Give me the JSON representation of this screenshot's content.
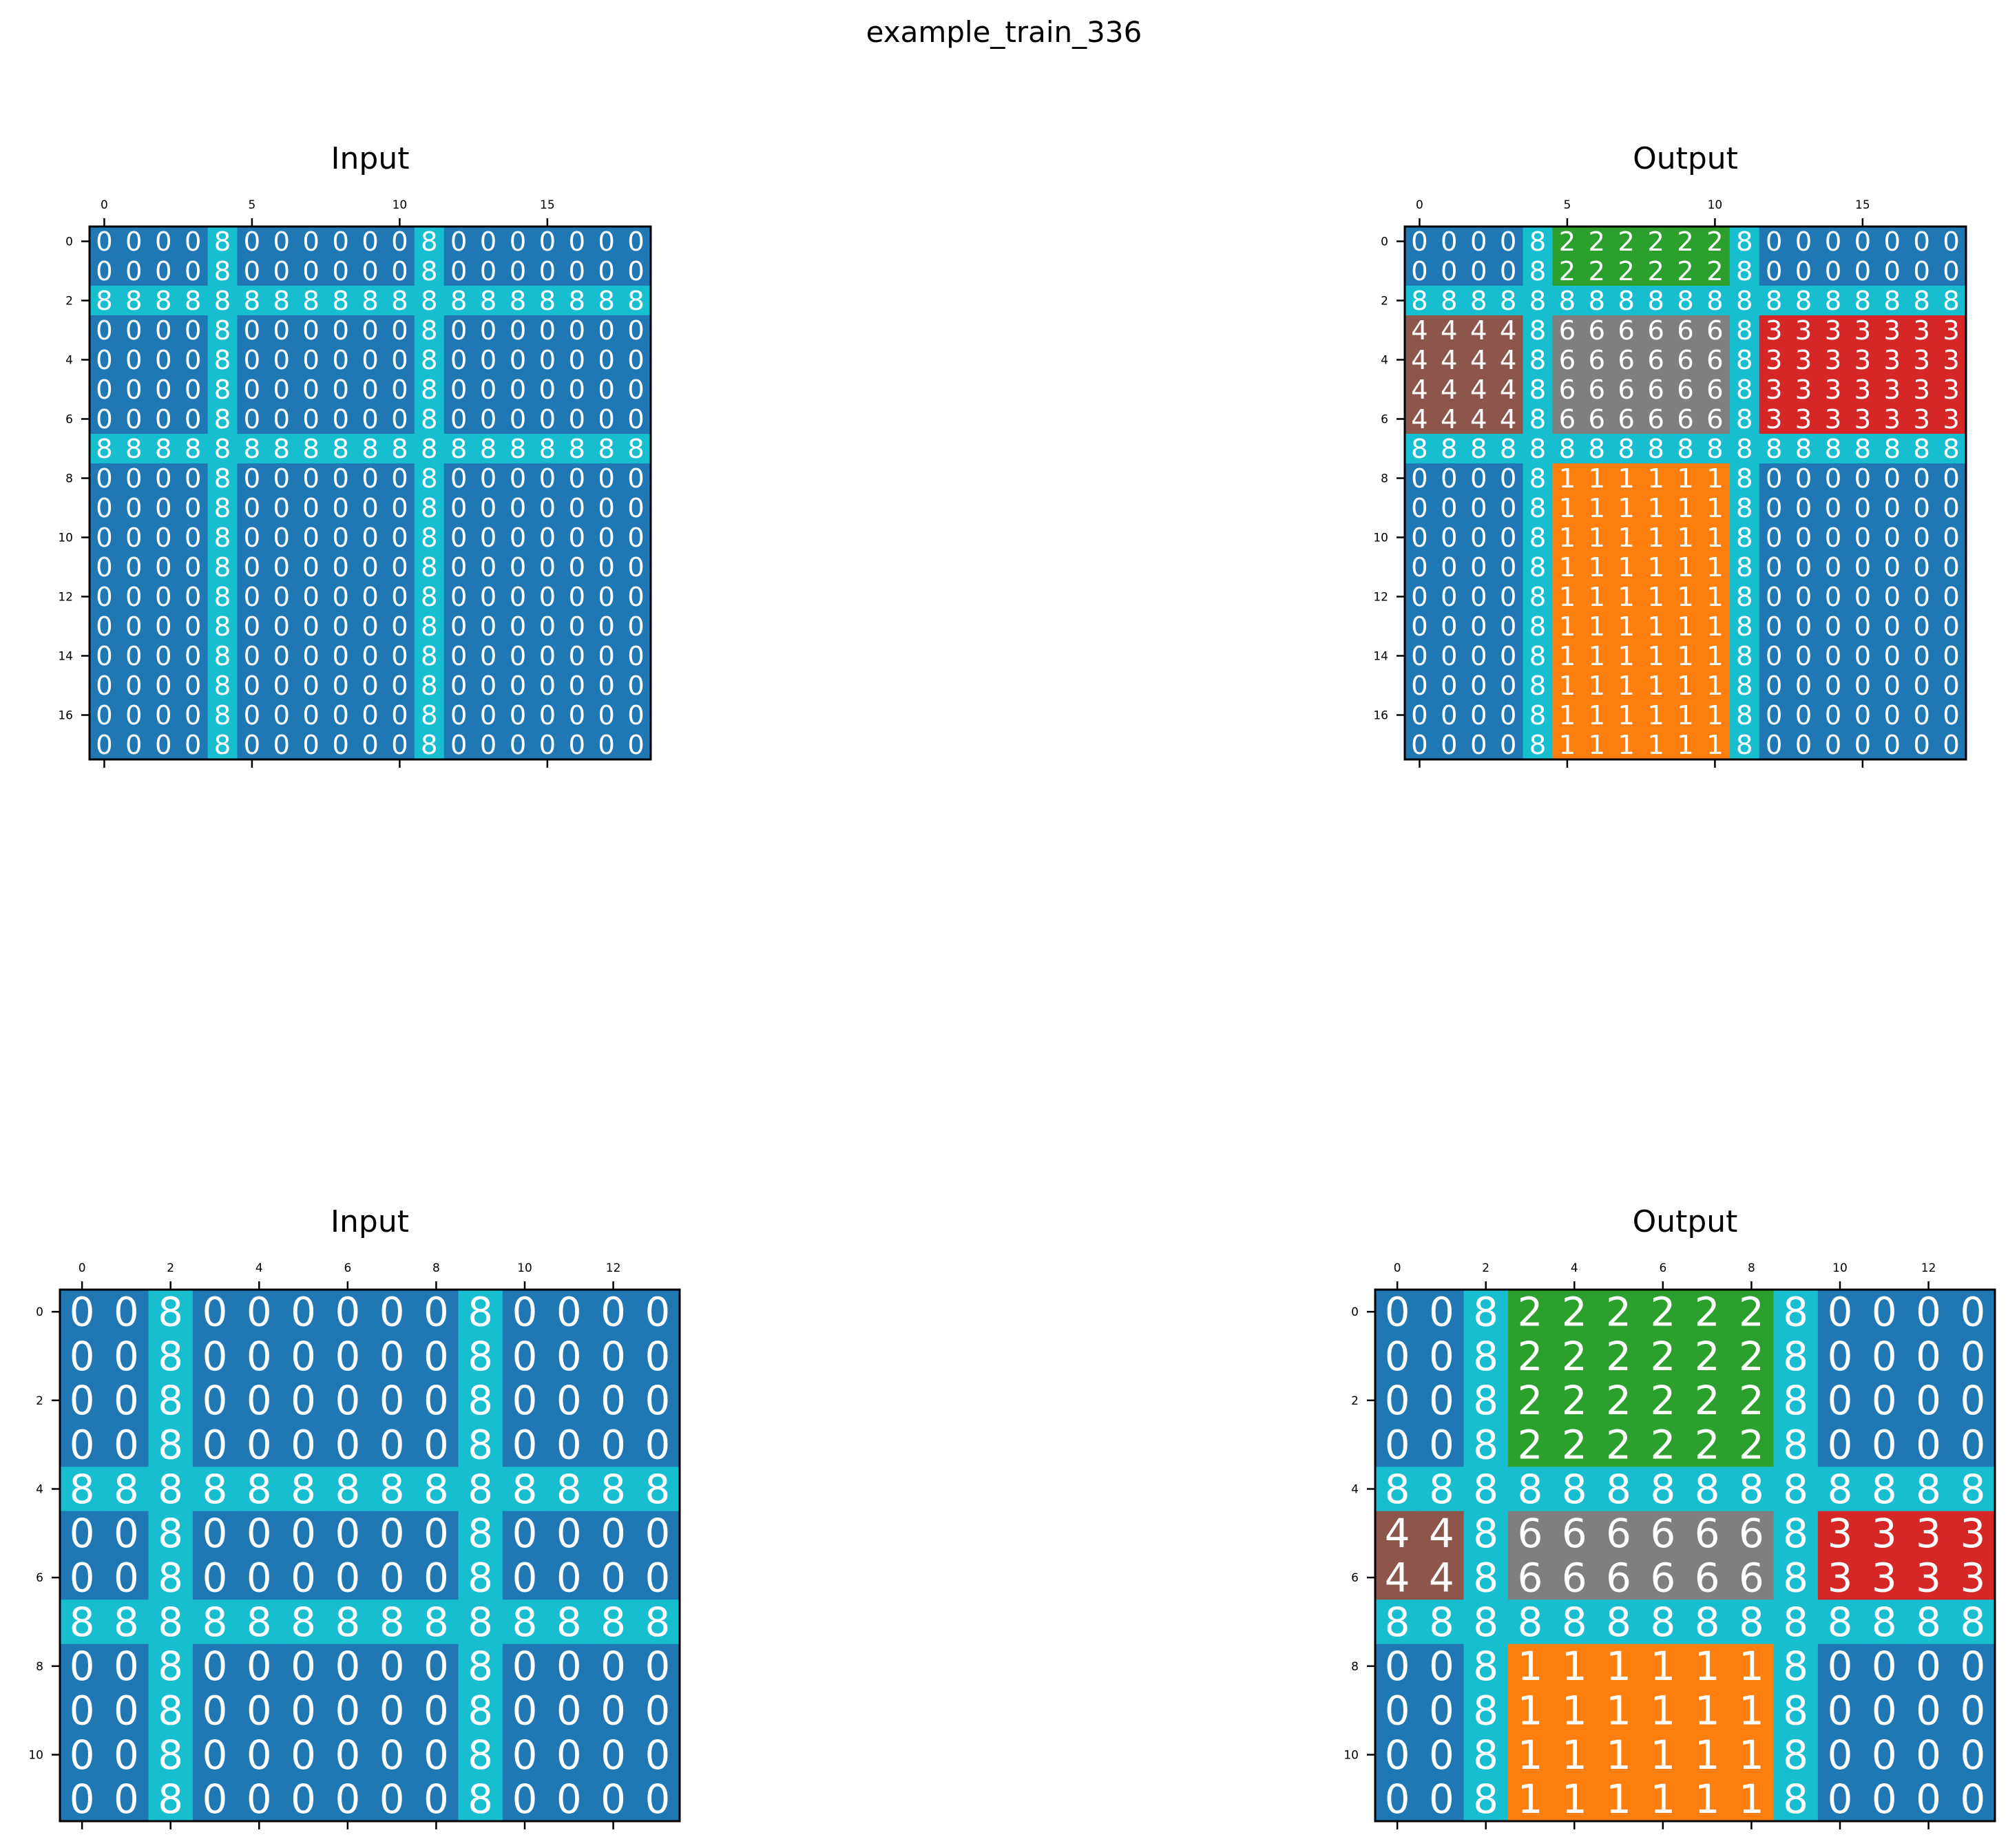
{
  "title": "example_train_336",
  "colors": {
    "0": "#1f77b4",
    "1": "#ff7f0e",
    "2": "#2ca02c",
    "3": "#d62728",
    "4": "#8c564b",
    "6": "#7f7f7f",
    "8": "#17becf",
    "cell_text": "#ffffff",
    "axis": "#000000"
  },
  "chart_data": [
    {
      "type": "heatmap",
      "title": "Input",
      "x_ticks": [
        0,
        5,
        10,
        15
      ],
      "y_ticks": [
        0,
        2,
        4,
        6,
        8,
        10,
        12,
        14,
        16
      ],
      "grid": [
        [
          0,
          0,
          0,
          0,
          8,
          0,
          0,
          0,
          0,
          0,
          0,
          8,
          0,
          0,
          0,
          0,
          0,
          0,
          0
        ],
        [
          0,
          0,
          0,
          0,
          8,
          0,
          0,
          0,
          0,
          0,
          0,
          8,
          0,
          0,
          0,
          0,
          0,
          0,
          0
        ],
        [
          8,
          8,
          8,
          8,
          8,
          8,
          8,
          8,
          8,
          8,
          8,
          8,
          8,
          8,
          8,
          8,
          8,
          8,
          8
        ],
        [
          0,
          0,
          0,
          0,
          8,
          0,
          0,
          0,
          0,
          0,
          0,
          8,
          0,
          0,
          0,
          0,
          0,
          0,
          0
        ],
        [
          0,
          0,
          0,
          0,
          8,
          0,
          0,
          0,
          0,
          0,
          0,
          8,
          0,
          0,
          0,
          0,
          0,
          0,
          0
        ],
        [
          0,
          0,
          0,
          0,
          8,
          0,
          0,
          0,
          0,
          0,
          0,
          8,
          0,
          0,
          0,
          0,
          0,
          0,
          0
        ],
        [
          0,
          0,
          0,
          0,
          8,
          0,
          0,
          0,
          0,
          0,
          0,
          8,
          0,
          0,
          0,
          0,
          0,
          0,
          0
        ],
        [
          8,
          8,
          8,
          8,
          8,
          8,
          8,
          8,
          8,
          8,
          8,
          8,
          8,
          8,
          8,
          8,
          8,
          8,
          8
        ],
        [
          0,
          0,
          0,
          0,
          8,
          0,
          0,
          0,
          0,
          0,
          0,
          8,
          0,
          0,
          0,
          0,
          0,
          0,
          0
        ],
        [
          0,
          0,
          0,
          0,
          8,
          0,
          0,
          0,
          0,
          0,
          0,
          8,
          0,
          0,
          0,
          0,
          0,
          0,
          0
        ],
        [
          0,
          0,
          0,
          0,
          8,
          0,
          0,
          0,
          0,
          0,
          0,
          8,
          0,
          0,
          0,
          0,
          0,
          0,
          0
        ],
        [
          0,
          0,
          0,
          0,
          8,
          0,
          0,
          0,
          0,
          0,
          0,
          8,
          0,
          0,
          0,
          0,
          0,
          0,
          0
        ],
        [
          0,
          0,
          0,
          0,
          8,
          0,
          0,
          0,
          0,
          0,
          0,
          8,
          0,
          0,
          0,
          0,
          0,
          0,
          0
        ],
        [
          0,
          0,
          0,
          0,
          8,
          0,
          0,
          0,
          0,
          0,
          0,
          8,
          0,
          0,
          0,
          0,
          0,
          0,
          0
        ],
        [
          0,
          0,
          0,
          0,
          8,
          0,
          0,
          0,
          0,
          0,
          0,
          8,
          0,
          0,
          0,
          0,
          0,
          0,
          0
        ],
        [
          0,
          0,
          0,
          0,
          8,
          0,
          0,
          0,
          0,
          0,
          0,
          8,
          0,
          0,
          0,
          0,
          0,
          0,
          0
        ],
        [
          0,
          0,
          0,
          0,
          8,
          0,
          0,
          0,
          0,
          0,
          0,
          8,
          0,
          0,
          0,
          0,
          0,
          0,
          0
        ],
        [
          0,
          0,
          0,
          0,
          8,
          0,
          0,
          0,
          0,
          0,
          0,
          8,
          0,
          0,
          0,
          0,
          0,
          0,
          0
        ]
      ]
    },
    {
      "type": "heatmap",
      "title": "Output",
      "x_ticks": [
        0,
        5,
        10,
        15
      ],
      "y_ticks": [
        0,
        2,
        4,
        6,
        8,
        10,
        12,
        14,
        16
      ],
      "grid": [
        [
          0,
          0,
          0,
          0,
          8,
          2,
          2,
          2,
          2,
          2,
          2,
          8,
          0,
          0,
          0,
          0,
          0,
          0,
          0
        ],
        [
          0,
          0,
          0,
          0,
          8,
          2,
          2,
          2,
          2,
          2,
          2,
          8,
          0,
          0,
          0,
          0,
          0,
          0,
          0
        ],
        [
          8,
          8,
          8,
          8,
          8,
          8,
          8,
          8,
          8,
          8,
          8,
          8,
          8,
          8,
          8,
          8,
          8,
          8,
          8
        ],
        [
          4,
          4,
          4,
          4,
          8,
          6,
          6,
          6,
          6,
          6,
          6,
          8,
          3,
          3,
          3,
          3,
          3,
          3,
          3
        ],
        [
          4,
          4,
          4,
          4,
          8,
          6,
          6,
          6,
          6,
          6,
          6,
          8,
          3,
          3,
          3,
          3,
          3,
          3,
          3
        ],
        [
          4,
          4,
          4,
          4,
          8,
          6,
          6,
          6,
          6,
          6,
          6,
          8,
          3,
          3,
          3,
          3,
          3,
          3,
          3
        ],
        [
          4,
          4,
          4,
          4,
          8,
          6,
          6,
          6,
          6,
          6,
          6,
          8,
          3,
          3,
          3,
          3,
          3,
          3,
          3
        ],
        [
          8,
          8,
          8,
          8,
          8,
          8,
          8,
          8,
          8,
          8,
          8,
          8,
          8,
          8,
          8,
          8,
          8,
          8,
          8
        ],
        [
          0,
          0,
          0,
          0,
          8,
          1,
          1,
          1,
          1,
          1,
          1,
          8,
          0,
          0,
          0,
          0,
          0,
          0,
          0
        ],
        [
          0,
          0,
          0,
          0,
          8,
          1,
          1,
          1,
          1,
          1,
          1,
          8,
          0,
          0,
          0,
          0,
          0,
          0,
          0
        ],
        [
          0,
          0,
          0,
          0,
          8,
          1,
          1,
          1,
          1,
          1,
          1,
          8,
          0,
          0,
          0,
          0,
          0,
          0,
          0
        ],
        [
          0,
          0,
          0,
          0,
          8,
          1,
          1,
          1,
          1,
          1,
          1,
          8,
          0,
          0,
          0,
          0,
          0,
          0,
          0
        ],
        [
          0,
          0,
          0,
          0,
          8,
          1,
          1,
          1,
          1,
          1,
          1,
          8,
          0,
          0,
          0,
          0,
          0,
          0,
          0
        ],
        [
          0,
          0,
          0,
          0,
          8,
          1,
          1,
          1,
          1,
          1,
          1,
          8,
          0,
          0,
          0,
          0,
          0,
          0,
          0
        ],
        [
          0,
          0,
          0,
          0,
          8,
          1,
          1,
          1,
          1,
          1,
          1,
          8,
          0,
          0,
          0,
          0,
          0,
          0,
          0
        ],
        [
          0,
          0,
          0,
          0,
          8,
          1,
          1,
          1,
          1,
          1,
          1,
          8,
          0,
          0,
          0,
          0,
          0,
          0,
          0
        ],
        [
          0,
          0,
          0,
          0,
          8,
          1,
          1,
          1,
          1,
          1,
          1,
          8,
          0,
          0,
          0,
          0,
          0,
          0,
          0
        ],
        [
          0,
          0,
          0,
          0,
          8,
          1,
          1,
          1,
          1,
          1,
          1,
          8,
          0,
          0,
          0,
          0,
          0,
          0,
          0
        ]
      ]
    },
    {
      "type": "heatmap",
      "title": "Input",
      "x_ticks": [
        0,
        2,
        4,
        6,
        8,
        10,
        12
      ],
      "y_ticks": [
        0,
        2,
        4,
        6,
        8,
        10
      ],
      "grid": [
        [
          0,
          0,
          8,
          0,
          0,
          0,
          0,
          0,
          0,
          8,
          0,
          0,
          0,
          0
        ],
        [
          0,
          0,
          8,
          0,
          0,
          0,
          0,
          0,
          0,
          8,
          0,
          0,
          0,
          0
        ],
        [
          0,
          0,
          8,
          0,
          0,
          0,
          0,
          0,
          0,
          8,
          0,
          0,
          0,
          0
        ],
        [
          0,
          0,
          8,
          0,
          0,
          0,
          0,
          0,
          0,
          8,
          0,
          0,
          0,
          0
        ],
        [
          8,
          8,
          8,
          8,
          8,
          8,
          8,
          8,
          8,
          8,
          8,
          8,
          8,
          8
        ],
        [
          0,
          0,
          8,
          0,
          0,
          0,
          0,
          0,
          0,
          8,
          0,
          0,
          0,
          0
        ],
        [
          0,
          0,
          8,
          0,
          0,
          0,
          0,
          0,
          0,
          8,
          0,
          0,
          0,
          0
        ],
        [
          8,
          8,
          8,
          8,
          8,
          8,
          8,
          8,
          8,
          8,
          8,
          8,
          8,
          8
        ],
        [
          0,
          0,
          8,
          0,
          0,
          0,
          0,
          0,
          0,
          8,
          0,
          0,
          0,
          0
        ],
        [
          0,
          0,
          8,
          0,
          0,
          0,
          0,
          0,
          0,
          8,
          0,
          0,
          0,
          0
        ],
        [
          0,
          0,
          8,
          0,
          0,
          0,
          0,
          0,
          0,
          8,
          0,
          0,
          0,
          0
        ],
        [
          0,
          0,
          8,
          0,
          0,
          0,
          0,
          0,
          0,
          8,
          0,
          0,
          0,
          0
        ]
      ]
    },
    {
      "type": "heatmap",
      "title": "Output",
      "x_ticks": [
        0,
        2,
        4,
        6,
        8,
        10,
        12
      ],
      "y_ticks": [
        0,
        2,
        4,
        6,
        8,
        10
      ],
      "grid": [
        [
          0,
          0,
          8,
          2,
          2,
          2,
          2,
          2,
          2,
          8,
          0,
          0,
          0,
          0
        ],
        [
          0,
          0,
          8,
          2,
          2,
          2,
          2,
          2,
          2,
          8,
          0,
          0,
          0,
          0
        ],
        [
          0,
          0,
          8,
          2,
          2,
          2,
          2,
          2,
          2,
          8,
          0,
          0,
          0,
          0
        ],
        [
          0,
          0,
          8,
          2,
          2,
          2,
          2,
          2,
          2,
          8,
          0,
          0,
          0,
          0
        ],
        [
          8,
          8,
          8,
          8,
          8,
          8,
          8,
          8,
          8,
          8,
          8,
          8,
          8,
          8
        ],
        [
          4,
          4,
          8,
          6,
          6,
          6,
          6,
          6,
          6,
          8,
          3,
          3,
          3,
          3
        ],
        [
          4,
          4,
          8,
          6,
          6,
          6,
          6,
          6,
          6,
          8,
          3,
          3,
          3,
          3
        ],
        [
          8,
          8,
          8,
          8,
          8,
          8,
          8,
          8,
          8,
          8,
          8,
          8,
          8,
          8
        ],
        [
          0,
          0,
          8,
          1,
          1,
          1,
          1,
          1,
          1,
          8,
          0,
          0,
          0,
          0
        ],
        [
          0,
          0,
          8,
          1,
          1,
          1,
          1,
          1,
          1,
          8,
          0,
          0,
          0,
          0
        ],
        [
          0,
          0,
          8,
          1,
          1,
          1,
          1,
          1,
          1,
          8,
          0,
          0,
          0,
          0
        ],
        [
          0,
          0,
          8,
          1,
          1,
          1,
          1,
          1,
          1,
          8,
          0,
          0,
          0,
          0
        ]
      ]
    }
  ]
}
